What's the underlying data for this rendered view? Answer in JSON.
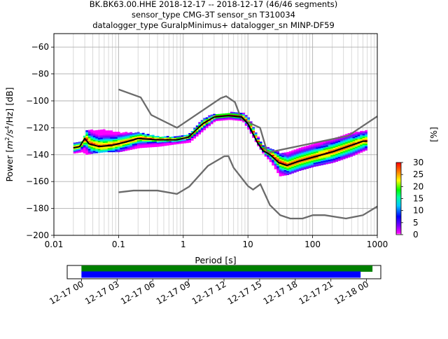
{
  "chart_data": [
    {
      "type": "heatmap",
      "title_lines": [
        "BK.BK63.00.HHE   2018-12-17 -- 2018-12-17  (46/46 segments)",
        "sensor_type CMG-3T sensor_sn T310034",
        "datalogger_type GuralpMinimus+ datalogger_sn MINP-DF59"
      ],
      "xlabel": "Period [s]",
      "ylabel_parts": {
        "a": "Power [",
        "m": "m",
        "e2": "2",
        "s": "/s",
        "e4": "4",
        "hz": "/Hz] [dB]"
      },
      "xscale": "log",
      "xlim": [
        0.01,
        1000
      ],
      "ylim": [
        -200,
        -50
      ],
      "xticks": [
        {
          "v": 0.01,
          "label": "0.01"
        },
        {
          "v": 0.1,
          "label": "0.1"
        },
        {
          "v": 1,
          "label": "1"
        },
        {
          "v": 10,
          "label": "10"
        },
        {
          "v": 100,
          "label": "100"
        },
        {
          "v": 1000,
          "label": "1000"
        }
      ],
      "yticks": [
        -200,
        -180,
        -160,
        -140,
        -120,
        -100,
        -80,
        -60
      ],
      "grid": true,
      "noise_model_high": [
        [
          0.1,
          -91.5
        ],
        [
          0.22,
          -97.4
        ],
        [
          0.32,
          -110.5
        ],
        [
          0.8,
          -120
        ],
        [
          3.8,
          -98
        ],
        [
          4.6,
          -96.5
        ],
        [
          6.3,
          -101
        ],
        [
          7.9,
          -113.5
        ],
        [
          15.4,
          -120
        ],
        [
          20,
          -138.5
        ],
        [
          354,
          -126
        ],
        [
          1000,
          -111.5
        ]
      ],
      "noise_model_low": [
        [
          0.1,
          -168
        ],
        [
          0.17,
          -166.7
        ],
        [
          0.4,
          -166.7
        ],
        [
          0.8,
          -169.2
        ],
        [
          1.24,
          -163.7
        ],
        [
          2.4,
          -148.4
        ],
        [
          4.3,
          -141.2
        ],
        [
          5,
          -141.1
        ],
        [
          6,
          -149.7
        ],
        [
          10,
          -163.3
        ],
        [
          12,
          -166
        ],
        [
          15.6,
          -162
        ],
        [
          21.9,
          -177.5
        ],
        [
          31.6,
          -185
        ],
        [
          45,
          -187.5
        ],
        [
          70,
          -187.5
        ],
        [
          101,
          -185
        ],
        [
          154,
          -185
        ],
        [
          328,
          -187.5
        ],
        [
          600,
          -185
        ],
        [
          1000,
          -178.5
        ]
      ],
      "mode_line": [
        [
          0.02,
          -135
        ],
        [
          0.025,
          -134
        ],
        [
          0.03,
          -128
        ],
        [
          0.035,
          -132
        ],
        [
          0.05,
          -134
        ],
        [
          0.08,
          -133
        ],
        [
          0.12,
          -131
        ],
        [
          0.2,
          -128
        ],
        [
          0.4,
          -129
        ],
        [
          0.8,
          -129
        ],
        [
          1.2,
          -127
        ],
        [
          2,
          -117
        ],
        [
          3,
          -112
        ],
        [
          5,
          -111
        ],
        [
          8,
          -112
        ],
        [
          10,
          -117
        ],
        [
          14,
          -131
        ],
        [
          17,
          -137
        ],
        [
          22,
          -140
        ],
        [
          30,
          -146
        ],
        [
          40,
          -148
        ],
        [
          60,
          -145
        ],
        [
          100,
          -142
        ],
        [
          200,
          -138
        ],
        [
          400,
          -133
        ],
        [
          600,
          -130
        ],
        [
          700,
          -130
        ]
      ],
      "psd_band": [
        [
          0.02,
          -139,
          -131
        ],
        [
          0.027,
          -138,
          -130
        ],
        [
          0.03,
          -140,
          -122
        ],
        [
          0.04,
          -139,
          -122
        ],
        [
          0.06,
          -138,
          -122
        ],
        [
          0.1,
          -138,
          -124
        ],
        [
          0.2,
          -135,
          -124
        ],
        [
          0.4,
          -134,
          -127
        ],
        [
          0.8,
          -132,
          -127
        ],
        [
          1.2,
          -131,
          -125
        ],
        [
          2,
          -122,
          -113
        ],
        [
          3,
          -115,
          -110
        ],
        [
          5,
          -114,
          -109
        ],
        [
          8,
          -115,
          -109
        ],
        [
          10,
          -122,
          -113
        ],
        [
          14,
          -134,
          -128
        ],
        [
          17,
          -140,
          -134
        ],
        [
          22,
          -146,
          -136
        ],
        [
          30,
          -156,
          -139
        ],
        [
          40,
          -155,
          -138
        ],
        [
          60,
          -152,
          -135
        ],
        [
          100,
          -149,
          -132
        ],
        [
          200,
          -146,
          -128
        ],
        [
          400,
          -141,
          -124
        ],
        [
          700,
          -136,
          -122
        ]
      ],
      "colorbar": {
        "label": "[%]",
        "min": 0,
        "max": 30,
        "ticks": [
          0,
          5,
          10,
          15,
          20,
          25,
          30
        ]
      }
    },
    {
      "type": "timeline",
      "xlabels": [
        "12-17 00",
        "12-17 03",
        "12-17 06",
        "12-17 09",
        "12-17 12",
        "12-17 15",
        "12-17 18",
        "12-17 21",
        "12-18 00"
      ],
      "x_hours": [
        0,
        3,
        6,
        9,
        12,
        15,
        18,
        21,
        24
      ],
      "xlim_hours": [
        -1.2,
        25.2
      ],
      "bars": [
        {
          "color": "#008000",
          "start": 0,
          "end": 24.5
        },
        {
          "color": "#0000ff",
          "start": 0,
          "end": 23.5
        }
      ]
    }
  ]
}
